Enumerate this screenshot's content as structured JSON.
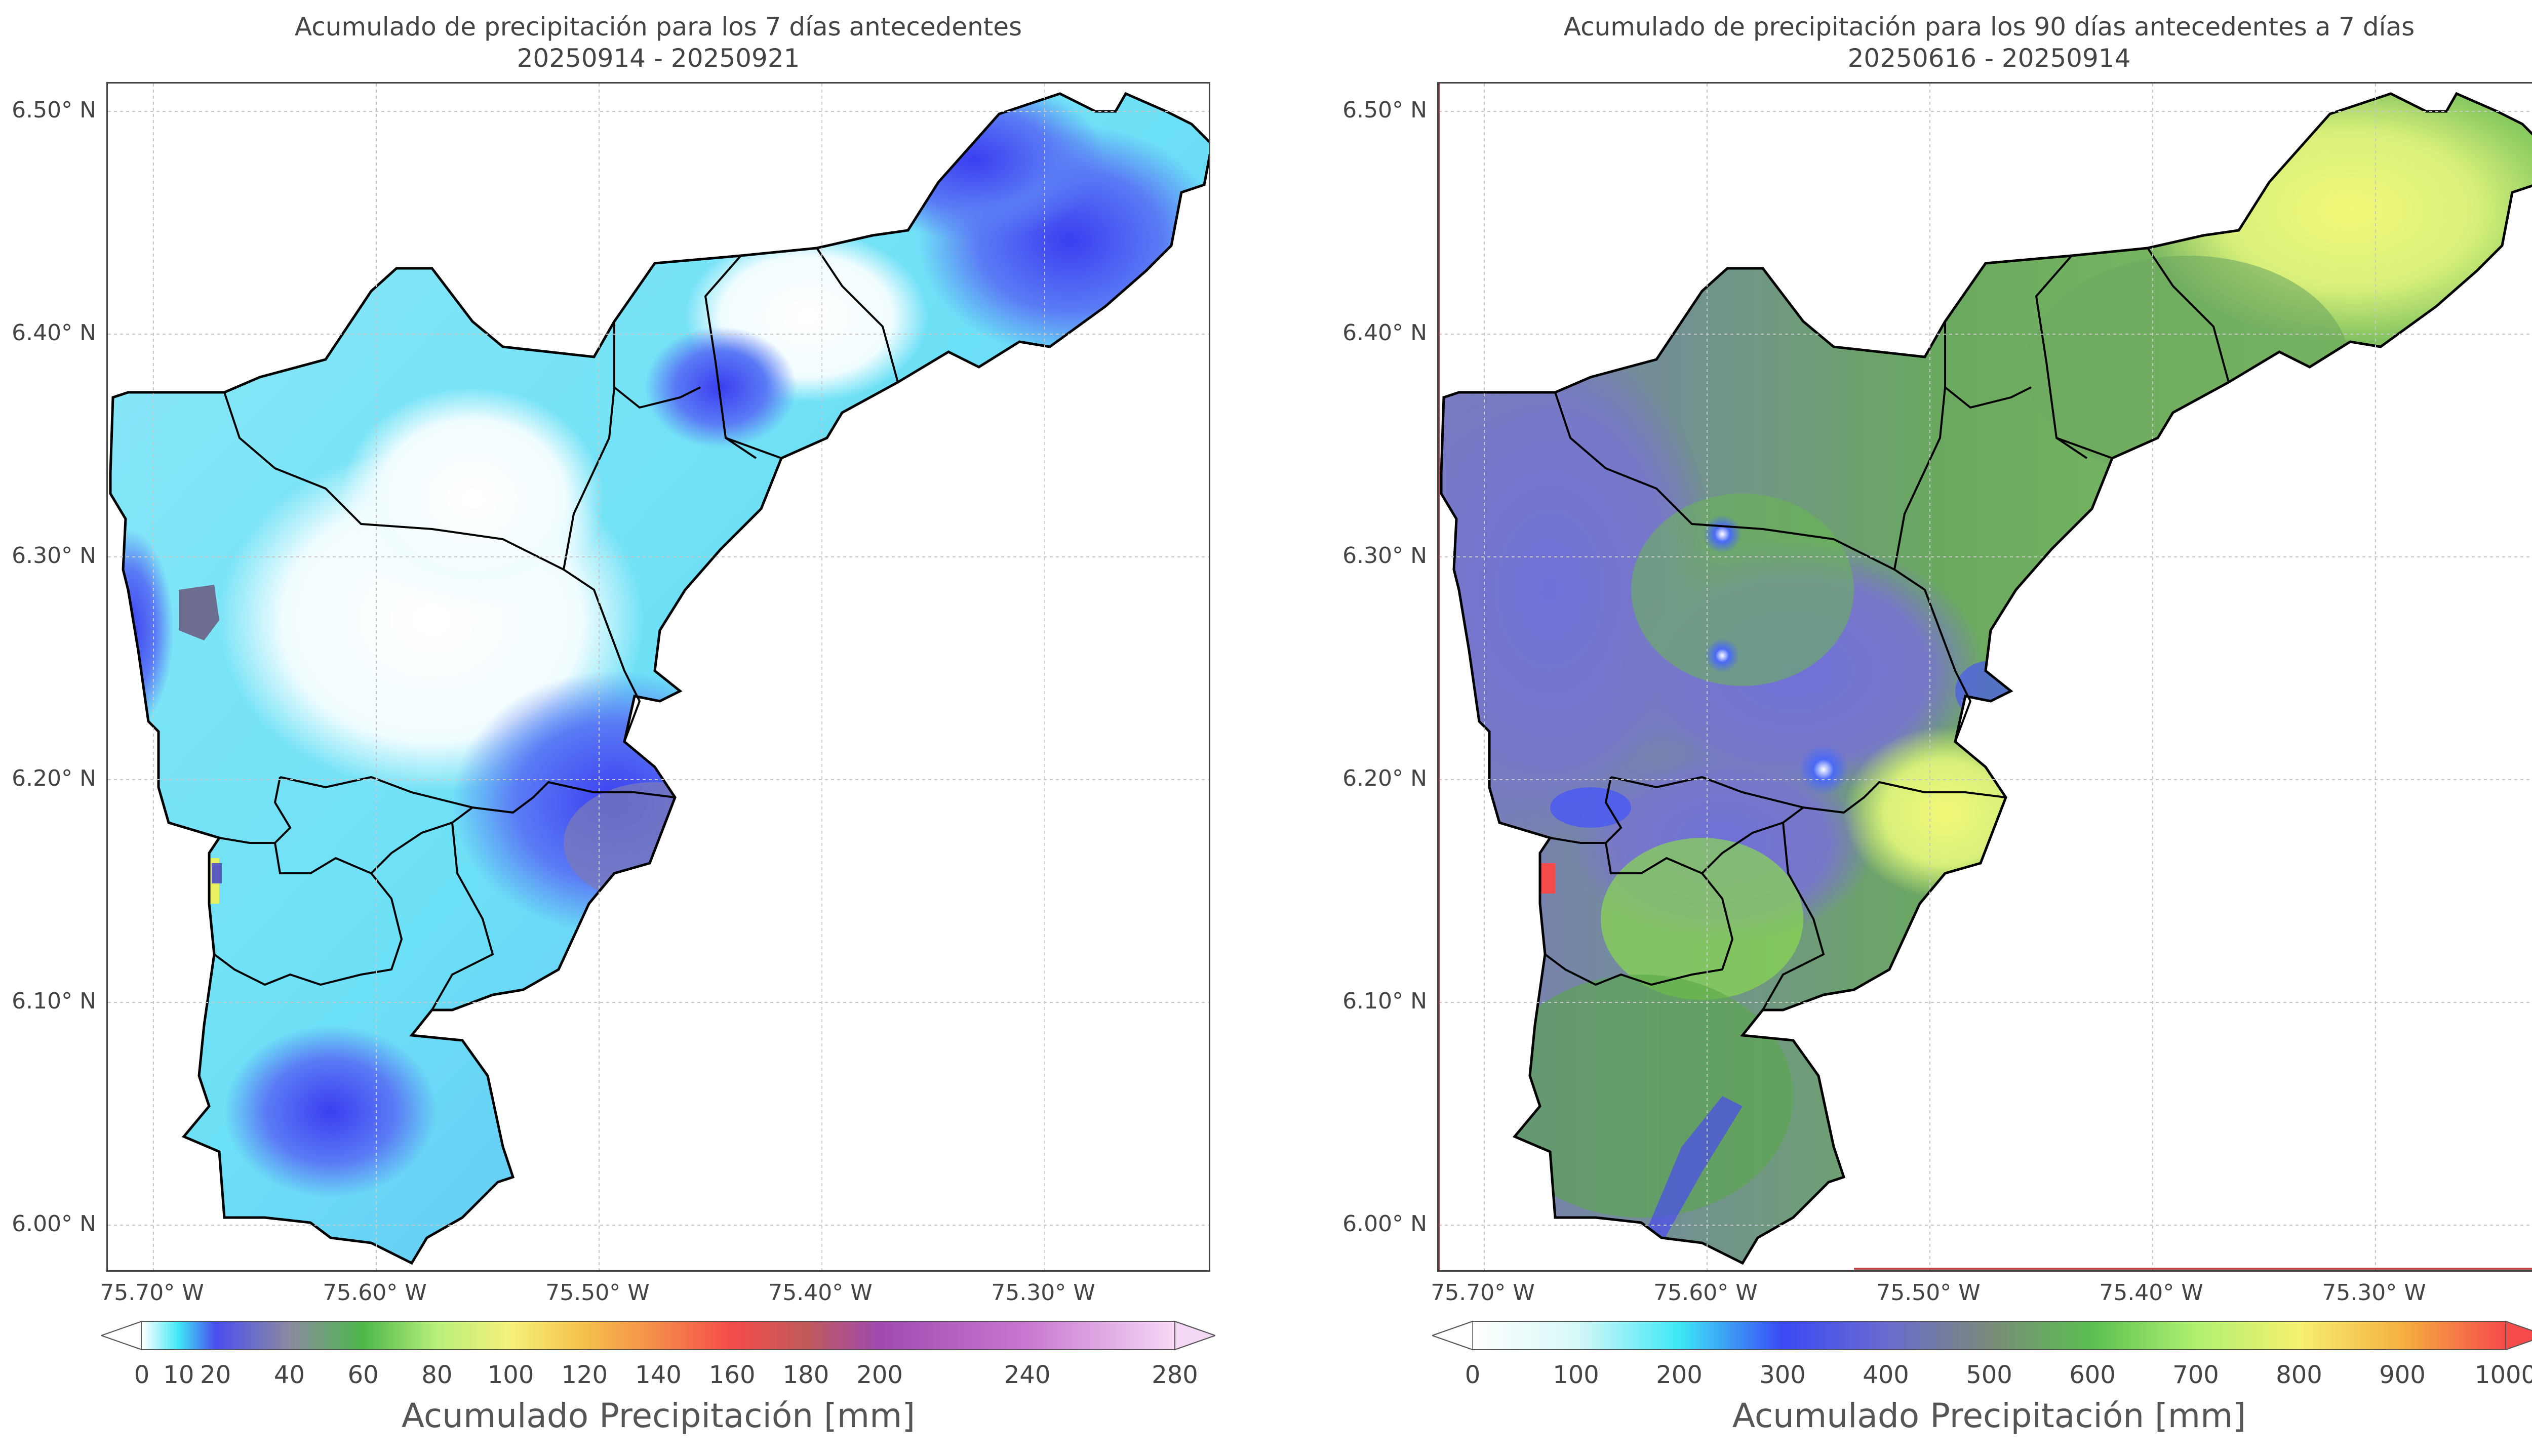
{
  "maps": [
    {
      "title_line1": "Acumulado de precipitación para los 7 días antecedentes",
      "title_line2": "20250914 - 20250921",
      "y_ticks": [
        "6.50° N",
        "6.40° N",
        "6.30° N",
        "6.20° N",
        "6.10° N",
        "6.00° N"
      ],
      "x_ticks": [
        "75.70° W",
        "75.60° W",
        "75.50° W",
        "75.40° W",
        "75.30° W"
      ],
      "colorbar": {
        "label": "Acumulado Precipitación [mm]",
        "ticks": [
          "0",
          "10",
          "20",
          "40",
          "60",
          "80",
          "100",
          "120",
          "140",
          "160",
          "180",
          "200",
          "240",
          "280"
        ],
        "tick_values": [
          0,
          10,
          20,
          40,
          60,
          80,
          100,
          120,
          140,
          160,
          180,
          200,
          240,
          280
        ],
        "range": [
          0,
          280
        ],
        "colors": [
          "#ffffff",
          "#3de8f5",
          "#4a4ef0",
          "#8a8aa0",
          "#4db84a",
          "#b8f07a",
          "#f5f07a",
          "#f5c04a",
          "#f58a4a",
          "#f54a4a",
          "#c05a5a",
          "#a04ab0",
          "#c878d0",
          "#f5d8f5"
        ]
      }
    },
    {
      "title_line1": "Acumulado de precipitación para los 90 días antecedentes a 7 días",
      "title_line2": "20250616 - 20250914",
      "y_ticks": [
        "6.50° N",
        "6.40° N",
        "6.30° N",
        "6.20° N",
        "6.10° N",
        "6.00° N"
      ],
      "x_ticks": [
        "75.70° W",
        "75.60° W",
        "75.50° W",
        "75.40° W",
        "75.30° W"
      ],
      "colorbar": {
        "label": "Acumulado Precipitación [mm]",
        "ticks": [
          "0",
          "100",
          "200",
          "300",
          "400",
          "500",
          "600",
          "700",
          "800",
          "900",
          "1000"
        ],
        "tick_values": [
          0,
          100,
          200,
          300,
          400,
          500,
          600,
          700,
          800,
          900,
          1000
        ],
        "range": [
          0,
          1000
        ],
        "colors": [
          "#ffffff",
          "#d8f8f8",
          "#3de8f5",
          "#3a4af5",
          "#6a6ad0",
          "#7a8a7a",
          "#5ac050",
          "#b0f070",
          "#f5f070",
          "#f5b040",
          "#f54a4a"
        ]
      }
    }
  ],
  "grid": {
    "lat_range": [
      5.98,
      6.515
    ],
    "lon_range": [
      -75.72,
      -75.225
    ]
  }
}
